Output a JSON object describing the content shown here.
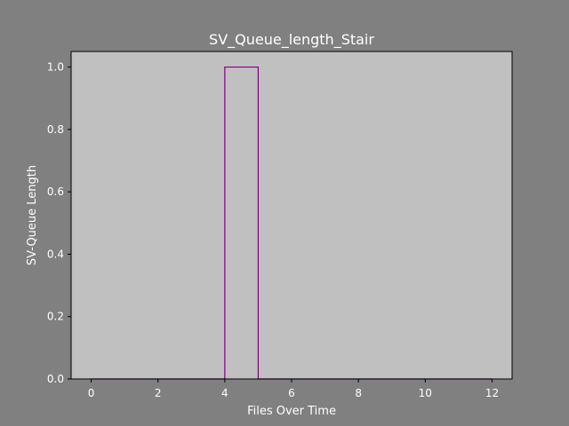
{
  "chart_data": {
    "type": "line",
    "title": "SV_Queue_length_Stair",
    "xlabel": "Files Over Time",
    "ylabel": "SV-Queue Length",
    "xlim": [
      -0.6,
      12.6
    ],
    "ylim": [
      0,
      1.05
    ],
    "xticks": [
      0,
      2,
      4,
      6,
      8,
      10,
      12
    ],
    "xtick_labels": [
      "0",
      "2",
      "4",
      "6",
      "8",
      "10",
      "12"
    ],
    "yticks": [
      0,
      0.2,
      0.4,
      0.6,
      0.8,
      1.0
    ],
    "ytick_labels": [
      "0.0",
      "0.2",
      "0.4",
      "0.6",
      "0.8",
      "1.0"
    ],
    "grid": false,
    "legend": "none",
    "series": [
      {
        "drawstyle": "stairs",
        "color": "#800080",
        "x": [
          0,
          1,
          2,
          3,
          4,
          5,
          6,
          7,
          8,
          9,
          10,
          11,
          12
        ],
        "values": [
          0,
          0,
          0,
          0,
          1,
          0,
          0,
          0,
          0,
          0,
          0,
          0,
          0
        ]
      }
    ],
    "colors": {
      "figure_background": "#808080",
      "plot_background": "#c0c0c0",
      "text": "#ffffff"
    }
  }
}
